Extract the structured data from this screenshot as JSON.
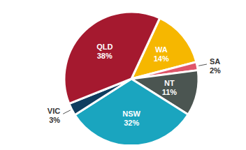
{
  "chart_data": {
    "type": "pie",
    "categories": [
      "WA",
      "SA",
      "NT",
      "NSW",
      "VIC",
      "QLD"
    ],
    "values": [
      14,
      2,
      11,
      32,
      3,
      38
    ],
    "value_labels": [
      "14%",
      "2%",
      "11%",
      "32%",
      "3%",
      "38%"
    ],
    "colors": [
      "#f6b700",
      "#e0566a",
      "#4b5551",
      "#1aa5bf",
      "#0f3d5f",
      "#a5192f"
    ],
    "data_labels": true
  }
}
